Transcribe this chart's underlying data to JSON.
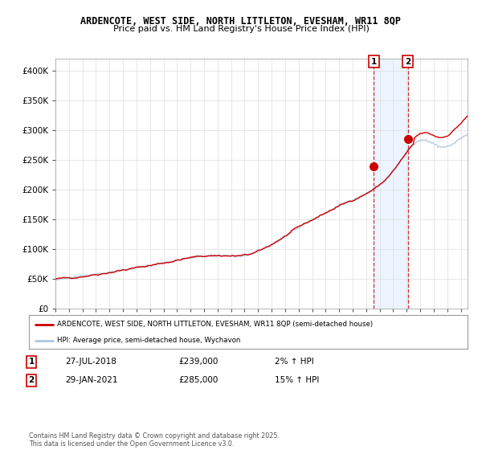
{
  "title1": "ARDENCOTE, WEST SIDE, NORTH LITTLETON, EVESHAM, WR11 8QP",
  "title2": "Price paid vs. HM Land Registry's House Price Index (HPI)",
  "legend_label1": "ARDENCOTE, WEST SIDE, NORTH LITTLETON, EVESHAM, WR11 8QP (semi-detached house)",
  "legend_label2": "HPI: Average price, semi-detached house, Wychavon",
  "sale1_date": "27-JUL-2018",
  "sale1_price": "£239,000",
  "sale1_hpi": "2% ↑ HPI",
  "sale2_date": "29-JAN-2021",
  "sale2_price": "£285,000",
  "sale2_hpi": "15% ↑ HPI",
  "footnote": "Contains HM Land Registry data © Crown copyright and database right 2025.\nThis data is licensed under the Open Government Licence v3.0.",
  "line_color_price": "#cc0000",
  "line_color_hpi": "#adc8e0",
  "sale_marker_color": "#cc0000",
  "vline_color": "#cc0000",
  "highlight_box_color": "#ddeeff",
  "ylim": [
    0,
    420000
  ],
  "yticks": [
    0,
    50000,
    100000,
    150000,
    200000,
    250000,
    300000,
    350000,
    400000
  ],
  "ytick_labels": [
    "£0",
    "£50K",
    "£100K",
    "£150K",
    "£200K",
    "£250K",
    "£300K",
    "£350K",
    "£400K"
  ],
  "sale1_year": 2018.57,
  "sale1_value": 239000,
  "sale2_year": 2021.08,
  "sale2_value": 285000,
  "bg_color": "#ffffff",
  "plot_bg_color": "#ffffff",
  "grid_color": "#dddddd"
}
